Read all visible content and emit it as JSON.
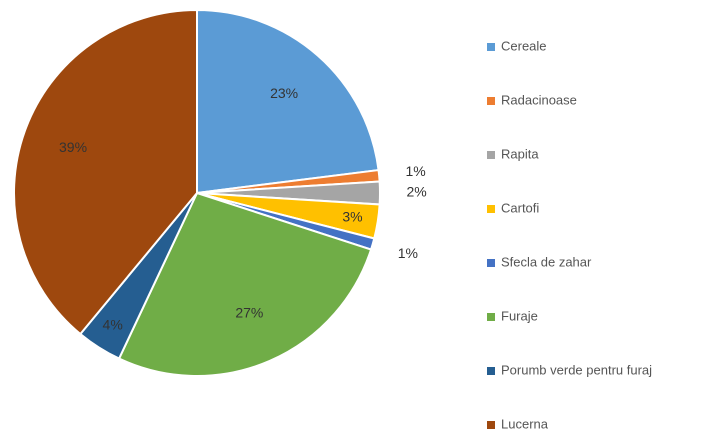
{
  "chart_data": {
    "type": "pie",
    "categories": [
      "Cereale",
      "Radacinoase",
      "Rapita",
      "Cartofi",
      "Sfecla de zahar",
      "Furaje",
      "Porumb verde pentru furaj",
      "Lucerna"
    ],
    "values": [
      23,
      1,
      2,
      3,
      1,
      27,
      4,
      39
    ],
    "value_labels": [
      "23%",
      "1%",
      "2%",
      "3%",
      "1%",
      "27%",
      "4%",
      "39%"
    ],
    "colors": [
      "#5b9bd5",
      "#ed7d31",
      "#a5a5a5",
      "#ffc000",
      "#4472c4",
      "#70ad47",
      "#255e91",
      "#9e480e"
    ],
    "legend": "right"
  }
}
